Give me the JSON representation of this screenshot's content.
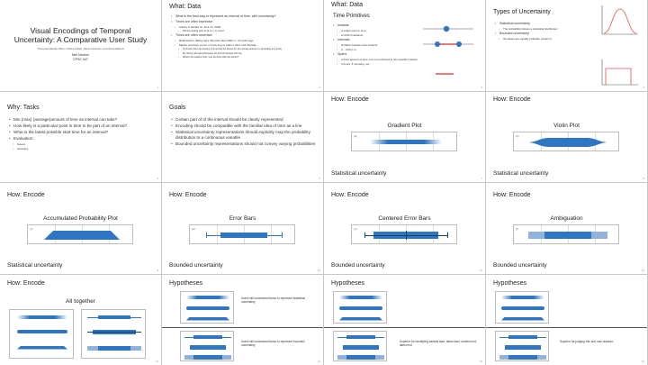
{
  "colors": {
    "accent": "#2e75c4",
    "bar_light": "#8fb3dd",
    "red": "#e05050"
  },
  "s1": {
    "title": "Visual Encodings of Temporal Uncertainty: A Comparative User Study",
    "authors": "Theresa-Isabelle Dhom, Markus Bögl, Paolo Federico, and Silvia Miksch",
    "presenter": "Neil Newton",
    "course": "CPSC 547"
  },
  "s2": {
    "title": "What: Data",
    "bullets": [
      {
        "lvl": 0,
        "text": "What is the best way to represent an interval of time, with uncertainty?"
      },
      {
        "lvl": 0,
        "text": "Times are often imprecise"
      },
      {
        "lvl": 1,
        "text": "Activity A started on June 14, 2009"
      },
      {
        "lvl": 2,
        "text": "Did this activity start at 11 a.m. or noon?"
      },
      {
        "lvl": 0,
        "text": "Times are often uncertain"
      },
      {
        "lvl": 1,
        "text": "Radiocarbon dating says this plant died 1000 +/- 10 years ago"
      },
      {
        "lvl": 1,
        "text": "Maybe you have a prior on how long a walk in clinic visit will take"
      },
      {
        "lvl": 2,
        "text": "It's known from an amount of time that the doctor for 10 minutes and so on, according to a study"
      },
      {
        "lvl": 2,
        "text": "My doctor will spend between 10 and 20 minutes with me"
      },
      {
        "lvl": 2,
        "text": "What's the earliest time I can be done with the doctor?"
      }
    ]
  },
  "s3": {
    "title": "What: Data",
    "subtitle": "Time Primitives",
    "bullets": [
      {
        "lvl": 0,
        "text": "Instants"
      },
      {
        "lvl": 1,
        "text": "A single point in time"
      },
      {
        "lvl": 1,
        "text": "a UNIX timestamp"
      },
      {
        "lvl": 0,
        "text": "Intervals"
      },
      {
        "lvl": 1,
        "text": "Duration between two instants"
      },
      {
        "lvl": 1,
        "text": "2 – 3:00 p.m."
      },
      {
        "lvl": 0,
        "text": "Spans"
      },
      {
        "lvl": 1,
        "text": "A fixed amount of time, but not anchored to two specific instants"
      },
      {
        "lvl": 1,
        "text": "3 hours, 5 minutes), etc."
      }
    ]
  },
  "s4": {
    "title": "Types of Uncertainty",
    "bullets": [
      {
        "lvl": 0,
        "text": "Statistical uncertainty"
      },
      {
        "lvl": 1,
        "text": "The probability follows a statistical distribution"
      },
      {
        "lvl": 0,
        "text": "Bounded uncertainty"
      },
      {
        "lvl": 1,
        "text": "All values are equally probable (uniform)"
      }
    ]
  },
  "s5": {
    "title": "Why: Tasks",
    "bullets": [
      {
        "lvl": 0,
        "text": "Min (max) (average)amount of time as interval can take?"
      },
      {
        "lvl": 0,
        "text": "How likely is a particular point in time to be part of an interval?"
      },
      {
        "lvl": 0,
        "text": "What is the latest possible start time for an interval?"
      },
      {
        "lvl": 0,
        "text": "Evaluation:"
      },
      {
        "lvl": 1,
        "text": "Speed"
      },
      {
        "lvl": 1,
        "text": "Accuracy"
      }
    ]
  },
  "s6": {
    "title": "Goals",
    "bullets": [
      {
        "lvl": 0,
        "text": "Certain part of of the interval should be clearly represented"
      },
      {
        "lvl": 0,
        "text": "Encoding should be compatible with the familiar idea of time as a line"
      },
      {
        "lvl": 0,
        "text": "Statistical uncertainty representations should explicitly map the probability distribution to a continuous variable"
      },
      {
        "lvl": 0,
        "text": "Bounded uncertainty representations should not convey varying probabilities"
      }
    ]
  },
  "s7": {
    "title": "How: Encode",
    "plot": "Gradient Plot",
    "footer": "Statistical uncertainty",
    "tag": "(a)"
  },
  "s8": {
    "title": "How: Encode",
    "plot": "Violin Plot",
    "footer": "Statistical uncertainty",
    "tag": "(b)"
  },
  "s9": {
    "title": "How: Encode",
    "plot": "Accumulated Probability Plot",
    "footer": "Statistical uncertainty",
    "tag": "(c)"
  },
  "s10": {
    "title": "How: Encode",
    "plot": "Error Bars",
    "footer": "Bounded uncertainty",
    "tag": "(d)"
  },
  "s11": {
    "title": "How: Encode",
    "plot": "Centered Error Bars",
    "footer": "Bounded uncertainty",
    "tag": "(e)"
  },
  "s12": {
    "title": "How: Encode",
    "plot": "Ambiguation",
    "footer": "Bounded uncertainty",
    "tag": "(f)"
  },
  "s13": {
    "title": "How: Encode",
    "plot": "All together"
  },
  "s14": {
    "title": "Hypotheses",
    "h1": "Users will understand these to represent statistical uncertainty",
    "h2": "Users will understand these to represent bounded uncertainty"
  },
  "s15": {
    "title": "Hypotheses",
    "h1": "Superior for identifying earliest start, latest start, earliest end, latest end"
  },
  "s16": {
    "title": "Hypotheses",
    "h1": "Superior for judging min and max duration"
  },
  "page_numbers": [
    "1",
    "2",
    "3",
    "4",
    "5",
    "6",
    "7",
    "8",
    "9",
    "10",
    "11",
    "12",
    "13",
    "14",
    "15",
    "16"
  ]
}
